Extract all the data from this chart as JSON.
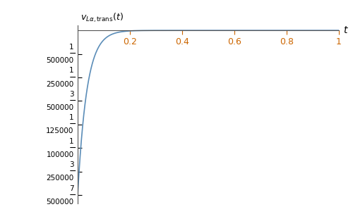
{
  "yticks": [
    -1.4e-05,
    -1.2e-05,
    -1e-05,
    -8e-06,
    -6e-06,
    -4e-06,
    -2e-06
  ],
  "ytick_labels_num": [
    "7",
    "3",
    "1",
    "1",
    "3",
    "1",
    "1"
  ],
  "ytick_labels_den": [
    "500000",
    "250000",
    "100000",
    "125000",
    "500000",
    "250000",
    "500000"
  ],
  "xticks": [
    0.2,
    0.4,
    0.6,
    0.8,
    1.0
  ],
  "line_color": "#5b8db8",
  "tick_color": "#cc6600",
  "bg_color": "#ffffff",
  "amplitude": -1.4e-05,
  "tau": 0.035,
  "xlim": [
    0,
    1
  ],
  "ylim_min": -1.47e-05,
  "ylim_max": 4e-07
}
